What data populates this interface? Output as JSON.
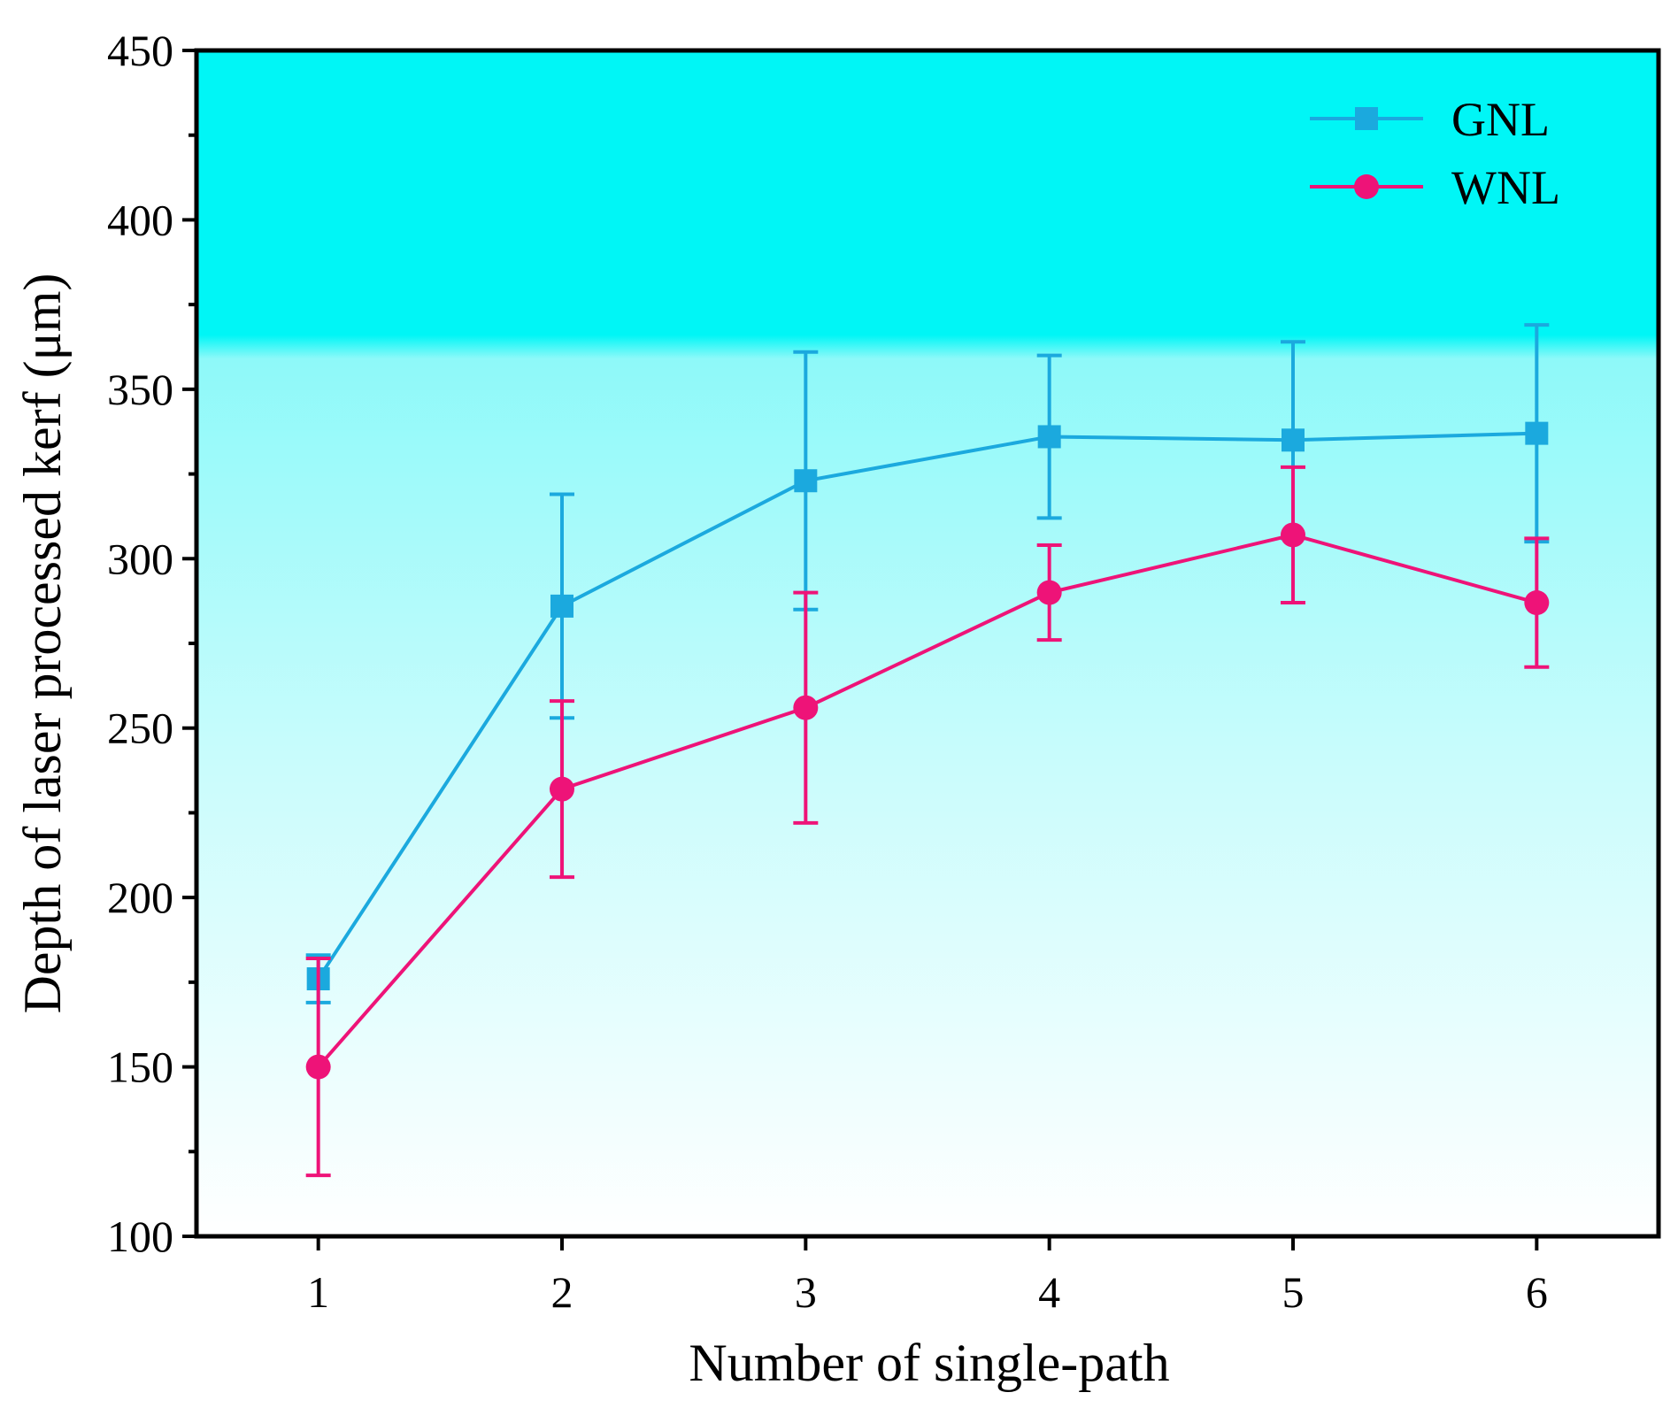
{
  "chart_data": {
    "type": "line",
    "title": "",
    "xlabel": "Number of single-path",
    "ylabel": "Depth of laser processed kerf (μm)",
    "x": [
      1,
      2,
      3,
      4,
      5,
      6
    ],
    "xticks": [
      "1",
      "2",
      "3",
      "4",
      "5",
      "6"
    ],
    "yticks": [
      "100",
      "150",
      "200",
      "250",
      "300",
      "350",
      "400",
      "450"
    ],
    "xlim": [
      0.5,
      6.5
    ],
    "ylim": [
      100,
      450
    ],
    "legend_position": "top-right",
    "background_gradient": [
      "#00f6f6",
      "#ffffff"
    ],
    "series": [
      {
        "name": "GNL",
        "marker": "square",
        "color": "#1ba9de",
        "values": [
          176,
          286,
          323,
          336,
          335,
          337
        ],
        "error": [
          7,
          33,
          38,
          24,
          29,
          32
        ]
      },
      {
        "name": "WNL",
        "marker": "circle",
        "color": "#ee1378",
        "values": [
          150,
          232,
          256,
          290,
          307,
          287
        ],
        "error": [
          32,
          26,
          34,
          14,
          20,
          19
        ]
      }
    ]
  }
}
